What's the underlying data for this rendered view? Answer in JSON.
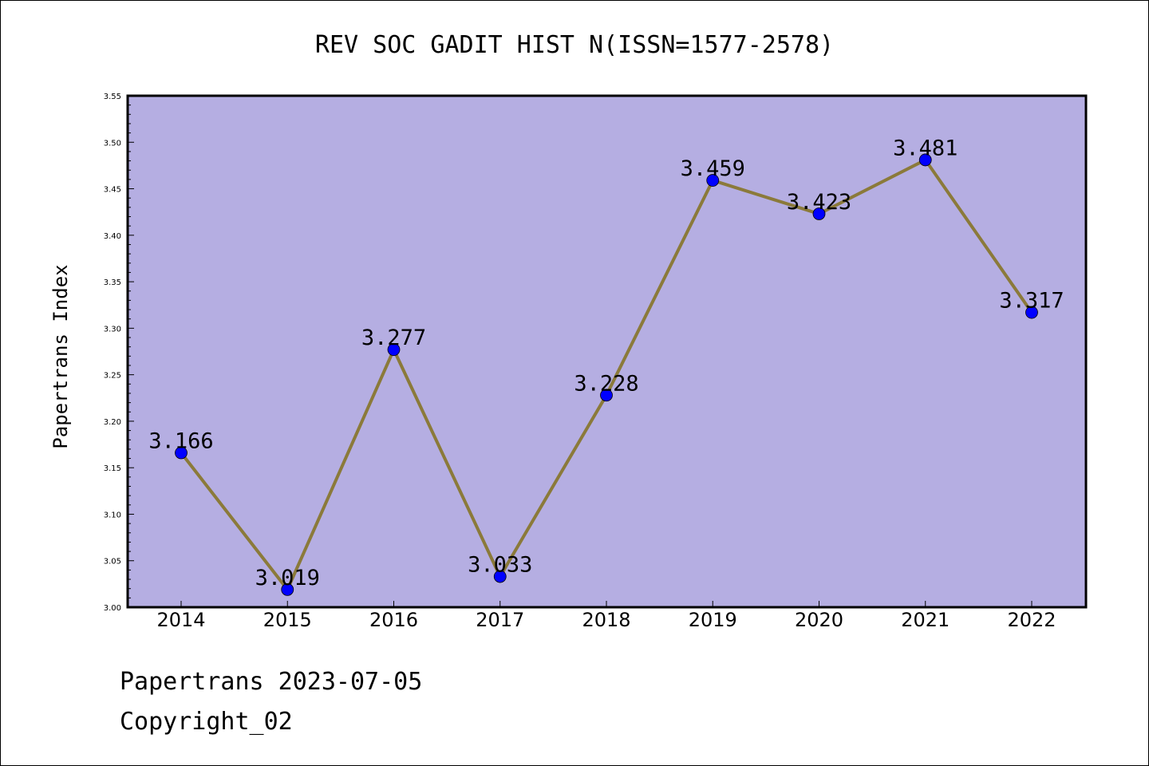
{
  "footer": {
    "line1": "Papertrans 2023-07-05",
    "line2": "Copyright_02"
  },
  "colors": {
    "plot_bg": "#b5aee2",
    "line": "#8b7a3a",
    "marker": "#0000ff"
  },
  "chart_data": {
    "type": "line",
    "title": "REV SOC GADIT HIST N(ISSN=1577-2578)",
    "xlabel": "",
    "ylabel": "Papertrans Index",
    "categories": [
      "2014",
      "2015",
      "2016",
      "2017",
      "2018",
      "2019",
      "2020",
      "2021",
      "2022"
    ],
    "series": [
      {
        "values": [
          3.166,
          3.019,
          3.277,
          3.033,
          3.228,
          3.459,
          3.423,
          3.481,
          3.317
        ],
        "labels": [
          "3.166",
          "3.019",
          "3.277",
          "3.033",
          "3.228",
          "3.459",
          "3.423",
          "3.481",
          "3.317"
        ]
      }
    ],
    "ylim": [
      3.0,
      3.55
    ],
    "yticks": [
      "3.00",
      "3.05",
      "3.10",
      "3.15",
      "3.20",
      "3.25",
      "3.30",
      "3.35",
      "3.40",
      "3.45",
      "3.50",
      "3.55"
    ],
    "grid": false,
    "legend": "none"
  }
}
